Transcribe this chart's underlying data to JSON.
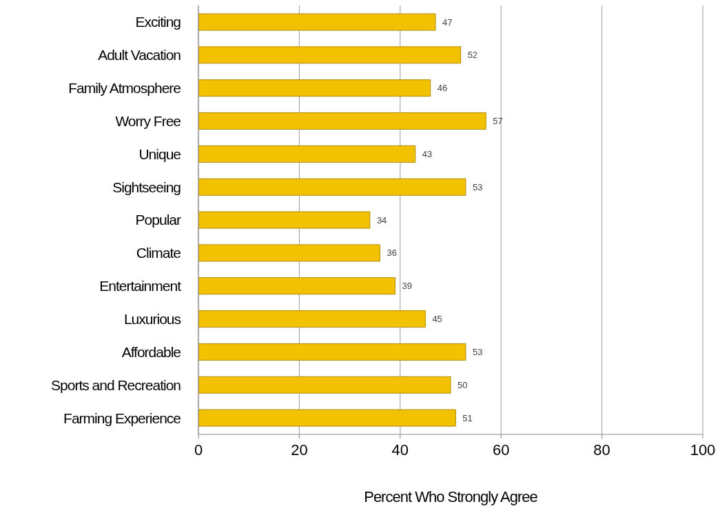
{
  "chart_data": {
    "type": "bar",
    "orientation": "horizontal",
    "categories": [
      "Exciting",
      "Adult Vacation",
      "Family Atmosphere",
      "Worry Free",
      "Unique",
      "Sightseeing",
      "Popular",
      "Climate",
      "Entertainment",
      "Luxurious",
      "Affordable",
      "Sports and Recreation",
      "Farming Experience"
    ],
    "values": [
      47,
      52,
      46,
      57,
      43,
      53,
      34,
      36,
      39,
      45,
      53,
      50,
      51
    ],
    "color": "#f2c200",
    "data_labels": true,
    "xlim": [
      0,
      100
    ],
    "xticks": [
      0,
      20,
      40,
      60,
      80,
      100
    ],
    "grid": "x",
    "xlabel": "Percent Who Strongly Agree"
  }
}
